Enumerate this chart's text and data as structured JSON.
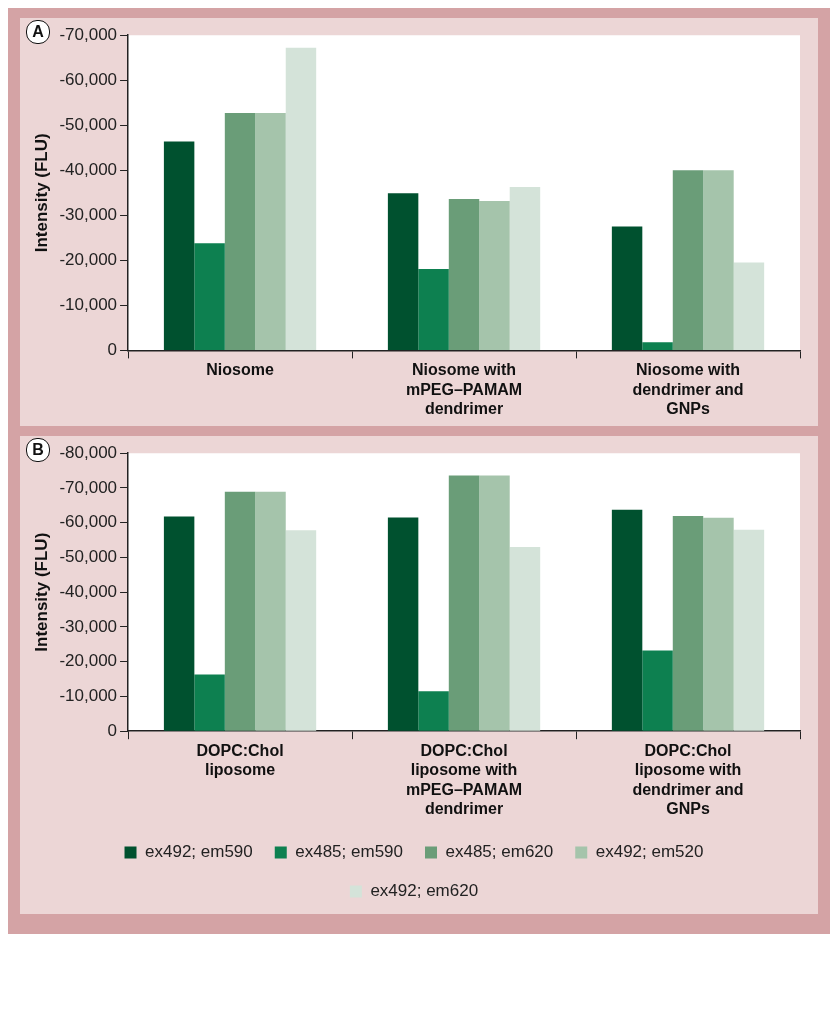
{
  "chart_data": [
    {
      "type": "bar",
      "ylabel": "Intensity (FLU)",
      "annotations": [
        "A"
      ],
      "categories": [
        "Niosome",
        "Niosome with mPEG–PAMAM dendrimer",
        "Niosome with dendrimer and GNPs"
      ],
      "series": [
        {
          "color": "#00512f",
          "values": [
            -46400,
            -34900,
            -27500
          ]
        },
        {
          "color": "#0d8050",
          "values": [
            -23800,
            -18100,
            -1800
          ]
        },
        {
          "color": "#6a9d78",
          "values": [
            -52700,
            -33600,
            -40000
          ]
        },
        {
          "color": "#a5c4ab",
          "values": [
            -52700,
            -33200,
            -40000
          ]
        },
        {
          "color": "#d4e3d9",
          "values": [
            -67200,
            -36300,
            -19500
          ]
        }
      ],
      "ylim": [
        0,
        -70000
      ],
      "yticks": [
        {
          "value": 0,
          "label": "0"
        },
        {
          "value": -10000,
          "label": "-10,000"
        },
        {
          "value": -20000,
          "label": "-20,000"
        },
        {
          "value": -30000,
          "label": "-30,000"
        },
        {
          "value": -40000,
          "label": "-40,000"
        },
        {
          "value": -50000,
          "label": "-50,000"
        },
        {
          "value": -60000,
          "label": "-60,000"
        },
        {
          "value": -70000,
          "label": "-70,000"
        }
      ],
      "grid": false,
      "legend": false
    },
    {
      "type": "bar",
      "ylabel": "Intensity (FLU)",
      "annotations": [
        "B"
      ],
      "categories": [
        "DOPC:Chol liposome",
        "DOPC:Chol liposome with mPEG–PAMAM dendrimer",
        "DOPC:Chol liposome with dendrimer and GNPs"
      ],
      "series": [
        {
          "name": "ex492; em590",
          "color": "#00512f",
          "values": [
            -61800,
            -61500,
            -63700
          ]
        },
        {
          "name": "ex485; em590",
          "color": "#0d8050",
          "values": [
            -16300,
            -11500,
            -23200
          ]
        },
        {
          "name": "ex485; em620",
          "color": "#6a9d78",
          "values": [
            -68900,
            -73600,
            -61900
          ]
        },
        {
          "name": "ex492; em520",
          "color": "#a5c4ab",
          "values": [
            -68900,
            -73600,
            -61400
          ]
        },
        {
          "name": "ex492; em620",
          "color": "#d4e3d9",
          "values": [
            -57800,
            -53000,
            -58000
          ]
        }
      ],
      "ylim": [
        0,
        -80000
      ],
      "yticks": [
        {
          "value": 0,
          "label": "0"
        },
        {
          "value": -10000,
          "label": "-10,000"
        },
        {
          "value": -20000,
          "label": "-20,000"
        },
        {
          "value": -30000,
          "label": "-30,000"
        },
        {
          "value": -40000,
          "label": "-40,000"
        },
        {
          "value": -50000,
          "label": "-50,000"
        },
        {
          "value": -60000,
          "label": "-60,000"
        },
        {
          "value": -70000,
          "label": "-70,000"
        },
        {
          "value": -80000,
          "label": "-80,000"
        }
      ],
      "grid": false,
      "legend": "bottom"
    }
  ]
}
